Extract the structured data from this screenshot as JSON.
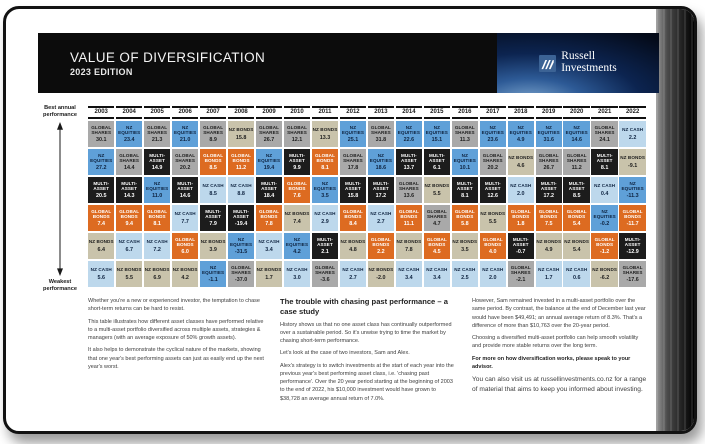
{
  "header": {
    "title": "VALUE OF DIVERSIFICATION",
    "subtitle": "2023 EDITION",
    "brand_line1": "Russell",
    "brand_line2": "Investments"
  },
  "axis": {
    "top_label": "Best annual performance",
    "bottom_label": "Weakest performance"
  },
  "colors": {
    "frame": "#121212",
    "header_bg": "#0c0c0c",
    "brand_navy": "#0c2450",
    "link_text": "#6fa3d0"
  },
  "chart_data": {
    "type": "table",
    "title": "Annual returns by asset class ranked from best to weakest performance, 2003-2022",
    "legend_position": "none",
    "asset_classes": {
      "global_shares": {
        "label": "GLOBAL SHARES",
        "color": "#a9a9a9",
        "text_color": "#1d1d1d"
      },
      "nz_equities": {
        "label": "NZ EQUITIES",
        "color": "#5fa0d8",
        "text_color": "#0e2340"
      },
      "multi_asset": {
        "label": "MULTI-ASSET",
        "color": "#1c1c1c",
        "text_color": "#ffffff"
      },
      "global_bonds": {
        "label": "GLOBAL BONDS",
        "color": "#dd6b21",
        "text_color": "#ffffff"
      },
      "nz_bonds": {
        "label": "NZ BONDS",
        "color": "#c9c3ab",
        "text_color": "#1d1d1d"
      },
      "nz_cash": {
        "label": "NZ CASH",
        "color": "#bdd8ec",
        "text_color": "#0e2340"
      }
    },
    "columns": [
      {
        "year": "2003",
        "cells": [
          {
            "asset": "global_shares",
            "value": "30.1"
          },
          {
            "asset": "nz_equities",
            "value": "27.2"
          },
          {
            "asset": "multi_asset",
            "value": "20.5"
          },
          {
            "asset": "global_bonds",
            "value": "7.4"
          },
          {
            "asset": "nz_bonds",
            "value": "6.4"
          },
          {
            "asset": "nz_cash",
            "value": "5.6"
          }
        ]
      },
      {
        "year": "2004",
        "cells": [
          {
            "asset": "nz_equities",
            "value": "23.4"
          },
          {
            "asset": "global_shares",
            "value": "14.4"
          },
          {
            "asset": "multi_asset",
            "value": "14.3"
          },
          {
            "asset": "global_bonds",
            "value": "9.4"
          },
          {
            "asset": "nz_cash",
            "value": "6.7"
          },
          {
            "asset": "nz_bonds",
            "value": "5.5"
          }
        ]
      },
      {
        "year": "2005",
        "cells": [
          {
            "asset": "global_shares",
            "value": "21.3"
          },
          {
            "asset": "multi_asset",
            "value": "14.9"
          },
          {
            "asset": "nz_equities",
            "value": "11.0"
          },
          {
            "asset": "global_bonds",
            "value": "8.1"
          },
          {
            "asset": "nz_cash",
            "value": "7.2"
          },
          {
            "asset": "nz_bonds",
            "value": "6.9"
          }
        ]
      },
      {
        "year": "2006",
        "cells": [
          {
            "asset": "nz_equities",
            "value": "21.0"
          },
          {
            "asset": "global_shares",
            "value": "20.2"
          },
          {
            "asset": "multi_asset",
            "value": "14.6"
          },
          {
            "asset": "nz_cash",
            "value": "7.7"
          },
          {
            "asset": "global_bonds",
            "value": "6.0"
          },
          {
            "asset": "nz_bonds",
            "value": "4.2"
          }
        ]
      },
      {
        "year": "2007",
        "cells": [
          {
            "asset": "global_shares",
            "value": "8.9"
          },
          {
            "asset": "global_bonds",
            "value": "8.5"
          },
          {
            "asset": "nz_cash",
            "value": "8.5"
          },
          {
            "asset": "multi_asset",
            "value": "7.9"
          },
          {
            "asset": "nz_bonds",
            "value": "3.9"
          },
          {
            "asset": "nz_equities",
            "value": "-1.1"
          }
        ]
      },
      {
        "year": "2008",
        "cells": [
          {
            "asset": "nz_bonds",
            "value": "15.8"
          },
          {
            "asset": "global_bonds",
            "value": "11.2"
          },
          {
            "asset": "nz_cash",
            "value": "8.8"
          },
          {
            "asset": "multi_asset",
            "value": "-19.4"
          },
          {
            "asset": "nz_equities",
            "value": "-31.5"
          },
          {
            "asset": "global_shares",
            "value": "-37.0"
          }
        ]
      },
      {
        "year": "2009",
        "cells": [
          {
            "asset": "global_shares",
            "value": "26.7"
          },
          {
            "asset": "nz_equities",
            "value": "19.4"
          },
          {
            "asset": "multi_asset",
            "value": "18.4"
          },
          {
            "asset": "global_bonds",
            "value": "7.8"
          },
          {
            "asset": "nz_cash",
            "value": "3.4"
          },
          {
            "asset": "nz_bonds",
            "value": "1.7"
          }
        ]
      },
      {
        "year": "2010",
        "cells": [
          {
            "asset": "global_shares",
            "value": "12.1"
          },
          {
            "asset": "multi_asset",
            "value": "9.9"
          },
          {
            "asset": "global_bonds",
            "value": "7.6"
          },
          {
            "asset": "nz_bonds",
            "value": "7.4"
          },
          {
            "asset": "nz_equities",
            "value": "4.2"
          },
          {
            "asset": "nz_cash",
            "value": "3.0"
          }
        ]
      },
      {
        "year": "2011",
        "cells": [
          {
            "asset": "nz_bonds",
            "value": "13.3"
          },
          {
            "asset": "global_bonds",
            "value": "8.1"
          },
          {
            "asset": "nz_equities",
            "value": "3.5"
          },
          {
            "asset": "nz_cash",
            "value": "2.9"
          },
          {
            "asset": "multi_asset",
            "value": "2.1"
          },
          {
            "asset": "global_shares",
            "value": "-3.6"
          }
        ]
      },
      {
        "year": "2012",
        "cells": [
          {
            "asset": "nz_equities",
            "value": "25.1"
          },
          {
            "asset": "global_shares",
            "value": "17.8"
          },
          {
            "asset": "multi_asset",
            "value": "15.8"
          },
          {
            "asset": "global_bonds",
            "value": "8.4"
          },
          {
            "asset": "nz_bonds",
            "value": "4.8"
          },
          {
            "asset": "nz_cash",
            "value": "2.7"
          }
        ]
      },
      {
        "year": "2013",
        "cells": [
          {
            "asset": "global_shares",
            "value": "31.8"
          },
          {
            "asset": "nz_equities",
            "value": "18.6"
          },
          {
            "asset": "multi_asset",
            "value": "17.2"
          },
          {
            "asset": "nz_cash",
            "value": "2.7"
          },
          {
            "asset": "global_bonds",
            "value": "2.2"
          },
          {
            "asset": "nz_bonds",
            "value": "-2.0"
          }
        ]
      },
      {
        "year": "2014",
        "cells": [
          {
            "asset": "nz_equities",
            "value": "22.6"
          },
          {
            "asset": "multi_asset",
            "value": "13.7"
          },
          {
            "asset": "global_shares",
            "value": "13.6"
          },
          {
            "asset": "global_bonds",
            "value": "11.1"
          },
          {
            "asset": "nz_bonds",
            "value": "7.8"
          },
          {
            "asset": "nz_cash",
            "value": "3.4"
          }
        ]
      },
      {
        "year": "2015",
        "cells": [
          {
            "asset": "nz_equities",
            "value": "15.1"
          },
          {
            "asset": "multi_asset",
            "value": "6.1"
          },
          {
            "asset": "nz_bonds",
            "value": "5.5"
          },
          {
            "asset": "global_shares",
            "value": "4.7"
          },
          {
            "asset": "global_bonds",
            "value": "4.5"
          },
          {
            "asset": "nz_cash",
            "value": "3.4"
          }
        ]
      },
      {
        "year": "2016",
        "cells": [
          {
            "asset": "global_shares",
            "value": "11.3"
          },
          {
            "asset": "nz_equities",
            "value": "10.1"
          },
          {
            "asset": "multi_asset",
            "value": "8.1"
          },
          {
            "asset": "global_bonds",
            "value": "5.8"
          },
          {
            "asset": "nz_bonds",
            "value": "3.5"
          },
          {
            "asset": "nz_cash",
            "value": "2.5"
          }
        ]
      },
      {
        "year": "2017",
        "cells": [
          {
            "asset": "nz_equities",
            "value": "23.6"
          },
          {
            "asset": "global_shares",
            "value": "20.2"
          },
          {
            "asset": "multi_asset",
            "value": "12.6"
          },
          {
            "asset": "nz_bonds",
            "value": "5.5"
          },
          {
            "asset": "global_bonds",
            "value": "4.0"
          },
          {
            "asset": "nz_cash",
            "value": "2.0"
          }
        ]
      },
      {
        "year": "2018",
        "cells": [
          {
            "asset": "nz_equities",
            "value": "4.9"
          },
          {
            "asset": "nz_bonds",
            "value": "4.6"
          },
          {
            "asset": "nz_cash",
            "value": "2.0"
          },
          {
            "asset": "global_bonds",
            "value": "1.8"
          },
          {
            "asset": "multi_asset",
            "value": "-0.7"
          },
          {
            "asset": "global_shares",
            "value": "-2.1"
          }
        ]
      },
      {
        "year": "2019",
        "cells": [
          {
            "asset": "nz_equities",
            "value": "31.6"
          },
          {
            "asset": "global_shares",
            "value": "26.7"
          },
          {
            "asset": "multi_asset",
            "value": "17.2"
          },
          {
            "asset": "global_bonds",
            "value": "7.5"
          },
          {
            "asset": "nz_bonds",
            "value": "4.9"
          },
          {
            "asset": "nz_cash",
            "value": "1.7"
          }
        ]
      },
      {
        "year": "2020",
        "cells": [
          {
            "asset": "nz_equities",
            "value": "14.6"
          },
          {
            "asset": "global_shares",
            "value": "11.2"
          },
          {
            "asset": "multi_asset",
            "value": "8.5"
          },
          {
            "asset": "global_bonds",
            "value": "5.4"
          },
          {
            "asset": "nz_bonds",
            "value": "5.4"
          },
          {
            "asset": "nz_cash",
            "value": "0.6"
          }
        ]
      },
      {
        "year": "2021",
        "cells": [
          {
            "asset": "global_shares",
            "value": "24.1"
          },
          {
            "asset": "multi_asset",
            "value": "8.1"
          },
          {
            "asset": "nz_cash",
            "value": "0.4"
          },
          {
            "asset": "nz_equities",
            "value": "-0.2"
          },
          {
            "asset": "global_bonds",
            "value": "-1.2"
          },
          {
            "asset": "nz_bonds",
            "value": "-6.2"
          }
        ]
      },
      {
        "year": "2022",
        "cells": [
          {
            "asset": "nz_cash",
            "value": "2.2"
          },
          {
            "asset": "nz_bonds",
            "value": "-9.1"
          },
          {
            "asset": "nz_equities",
            "value": "-11.3"
          },
          {
            "asset": "global_bonds",
            "value": "-11.7"
          },
          {
            "asset": "multi_asset",
            "value": "-12.9"
          },
          {
            "asset": "global_shares",
            "value": "-17.6"
          }
        ]
      }
    ]
  },
  "articles": {
    "left": {
      "paragraphs": [
        "Whether you're a new or experienced investor, the temptation to chase short-term returns can be hard to resist.",
        "This table illustrates how different asset classes have performed relative to a multi-asset portfolio diversified across multiple assets, strategies & managers (with an average exposure of 50% growth assets).",
        "It also helps to demonstrate the cyclical nature of the markets, showing that one year's best performing assets can just as easily end up the next year's worst."
      ]
    },
    "middle": {
      "heading": "The trouble with chasing past performance – a case study",
      "paragraphs": [
        "History shows us that no one asset class has continually outperformed over a sustainable period. So it's unwise trying to time the market by chasing short-term performance.",
        "Let's look at the case of two investors, Sam and Alex.",
        "Alex's strategy is to switch investments at the start of each year into the previous year's best performing asset class, i.e. 'chasing past performance'. Over the 20 year period starting at the beginning of 2003 to the end of 2022, his $10,000 investment would have grown to $38,728 an average annual return of 7.0%."
      ]
    },
    "right": {
      "paragraphs": [
        "However, Sam remained invested in a multi-asset portfolio over the same period. By contrast, the balance at the end of December last year would have been $49,491; an annual average return of 8.3%. That's a difference of more than $10,763 over the 20-year period.",
        "Choosing a diversified multi-asset portfolio can help smooth volatility and provide more stable returns over the long term."
      ],
      "callout": "For more on how diversification works, please speak to your advisor.",
      "link_text": "You can also visit us at russellinvestments.co.nz for a range of material that aims to keep you informed about investing."
    }
  }
}
